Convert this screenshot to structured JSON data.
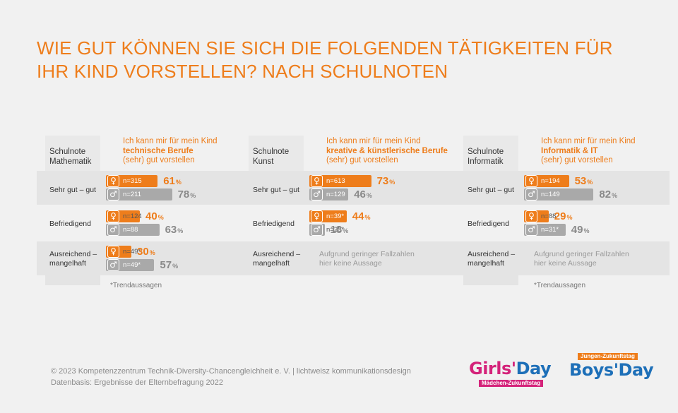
{
  "title_line1": "WIE GUT KÖNNEN SIE SICH DIE FOLGENDEN TÄTIGKEITEN FÜR",
  "title_line2": "IHR KIND VORSTELLEN? NACH SCHULNOTEN",
  "colors": {
    "female": "#ee7d1b",
    "male": "#a9a9a9",
    "title": "#ee7d1b"
  },
  "icons": {
    "female": "female-symbol-icon",
    "male": "male-symbol-icon"
  },
  "female_symbol": "♀",
  "male_symbol": "♂",
  "pct_unit": "%",
  "chart_data": [
    {
      "type": "bar",
      "grade_header_1": "Schulnote",
      "grade_header_2": "Mathematik",
      "question_pre": "Ich kann mir für mein Kind",
      "question_bold": "technische Berufe",
      "question_post": "(sehr) gut vorstellen",
      "xlim": [
        0,
        100
      ],
      "groups": [
        {
          "label": "Sehr gut – gut",
          "female": {
            "n": "n=315",
            "value": 61
          },
          "male": {
            "n": "n=211",
            "value": 78
          }
        },
        {
          "label": "Befriedigend",
          "female": {
            "n": "n=124",
            "value": 40
          },
          "male": {
            "n": "n=88",
            "value": 63
          }
        },
        {
          "label_1": "Ausreichend –",
          "label_2": "mangelhaft",
          "female": {
            "n": "n=49*",
            "value": 30
          },
          "male": {
            "n": "n=49*",
            "value": 57
          }
        }
      ],
      "footnote": "*Trendaussagen"
    },
    {
      "type": "bar",
      "grade_header_1": "Schulnote",
      "grade_header_2": "Kunst",
      "question_pre": "Ich kann mir für mein Kind",
      "question_bold": "kreative & künstlerische Berufe",
      "question_post": "(sehr) gut vorstellen",
      "xlim": [
        0,
        100
      ],
      "groups": [
        {
          "label": "Sehr gut – gut",
          "female": {
            "n": "n=613",
            "value": 73
          },
          "male": {
            "n": "n=129",
            "value": 46
          }
        },
        {
          "label": "Befriedigend",
          "female": {
            "n": "n=39*",
            "value": 44
          },
          "male": {
            "n": "n=25*",
            "value": 18
          }
        },
        {
          "label_1": "Ausreichend –",
          "label_2": "mangelhaft",
          "note_1": "Aufgrund geringer Fallzahlen",
          "note_2": "hier keine Aussage"
        }
      ]
    },
    {
      "type": "bar",
      "grade_header_1": "Schulnote",
      "grade_header_2": "Informatik",
      "question_pre": "Ich kann mir für mein Kind",
      "question_bold": "Informatik & IT",
      "question_post": "(sehr) gut vorstellen",
      "xlim": [
        0,
        100
      ],
      "groups": [
        {
          "label": "Sehr gut – gut",
          "female": {
            "n": "n=194",
            "value": 53
          },
          "male": {
            "n": "n=149",
            "value": 82
          }
        },
        {
          "label": "Befriedigend",
          "female": {
            "n": "n=88",
            "value": 29
          },
          "male": {
            "n": "n=31*",
            "value": 49
          }
        },
        {
          "label_1": "Ausreichend –",
          "label_2": "mangelhaft",
          "note_1": "Aufgrund geringer Fallzahlen",
          "note_2": "hier keine Aussage"
        }
      ],
      "footnote": "*Trendaussagen"
    }
  ],
  "footer_line1": "© 2023  Kompetenzzentrum Technik-Diversity-Chancengleichheit e. V. | lichtweisz kommunikationsdesign",
  "footer_line2": "Datenbasis: Ergebnisse der Elternbefragung 2022",
  "logo_girls": {
    "girls": "Girls'",
    "day": "Day",
    "sub": "Mädchen-Zukunftstag"
  },
  "logo_boys": {
    "sub": "Jungen-Zukunftstag",
    "text": "Boys'Day"
  }
}
